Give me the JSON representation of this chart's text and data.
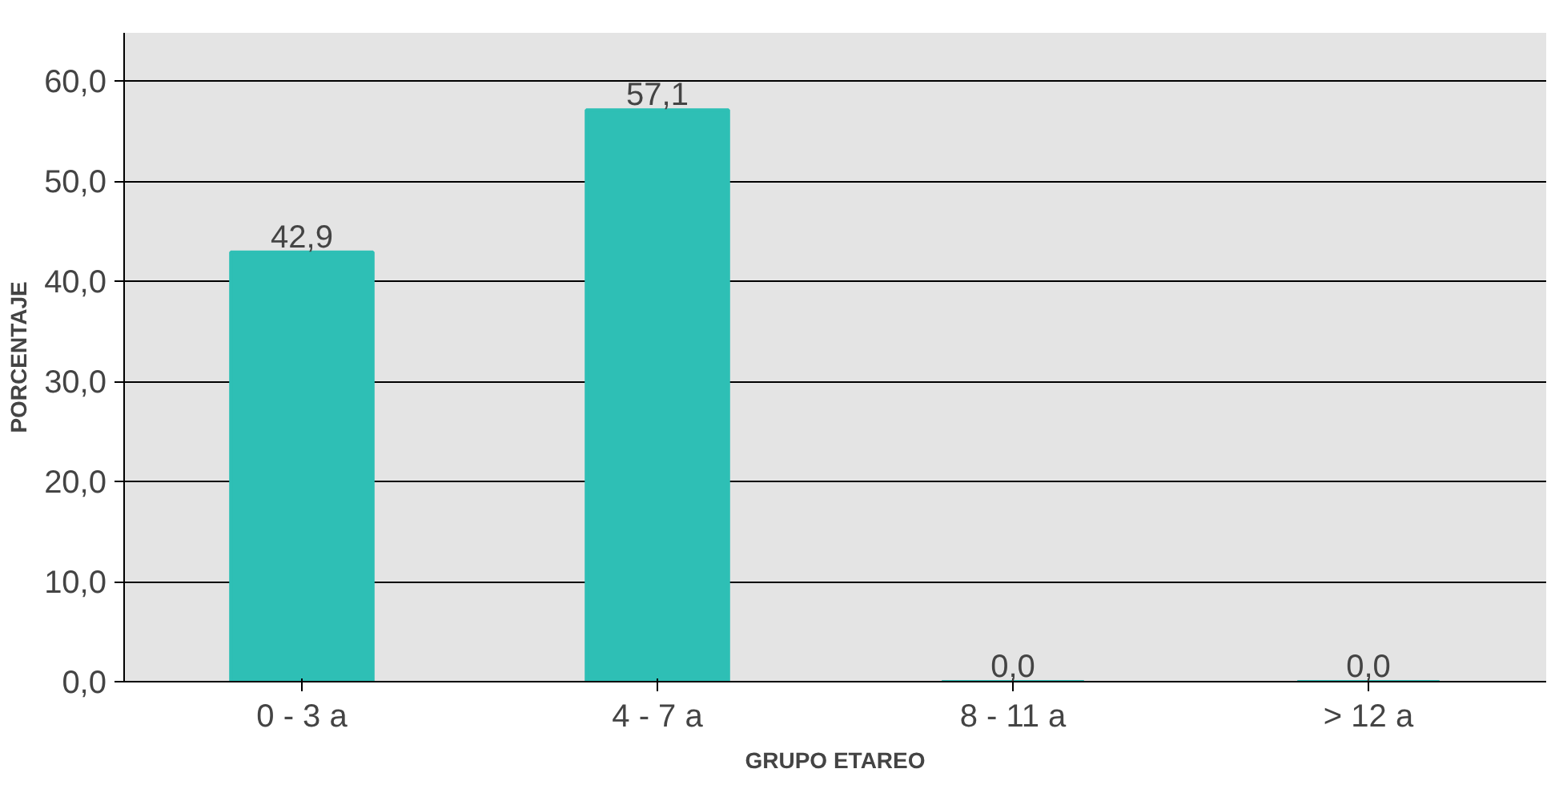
{
  "chart_data": {
    "type": "bar",
    "xlabel": "GRUPO ETAREO",
    "ylabel": "PORCENTAJE",
    "categories": [
      "0 - 3 a",
      "4 - 7 a",
      "8 - 11 a",
      "> 12 a"
    ],
    "values": [
      42.9,
      57.1,
      0,
      0
    ],
    "value_labels": [
      "42,9",
      "57,1",
      "0,0",
      "0,0"
    ],
    "color": "#2ebfb5",
    "ylim": [
      0,
      60
    ],
    "yticks": [
      {
        "value": 0,
        "label": "0,0"
      },
      {
        "value": 10,
        "label": "10,0"
      },
      {
        "value": 20,
        "label": "20,0"
      },
      {
        "value": 30,
        "label": "30,0"
      },
      {
        "value": 40,
        "label": "40,0"
      },
      {
        "value": 50,
        "label": "50,0"
      },
      {
        "value": 60,
        "label": "60,0"
      }
    ],
    "grid": "y"
  }
}
